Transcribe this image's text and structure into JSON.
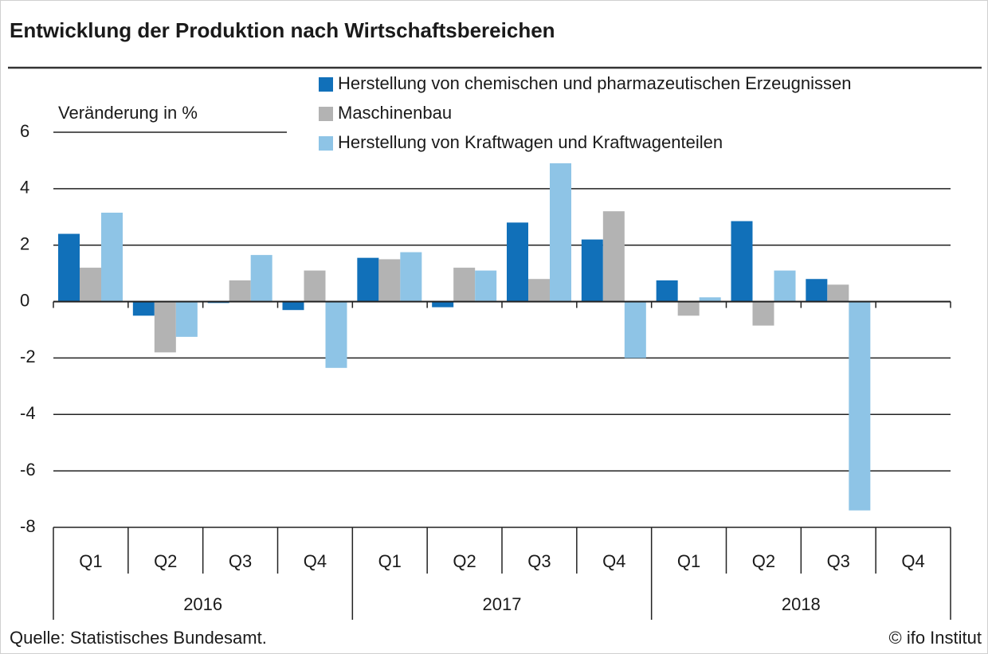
{
  "chart_data": {
    "type": "bar",
    "title": "Entwicklung der Produktion nach Wirtschaftsbereichen",
    "y_label": "Veränderung in %",
    "categories": [
      "Q1",
      "Q2",
      "Q3",
      "Q4",
      "Q1",
      "Q2",
      "Q3",
      "Q4",
      "Q1",
      "Q2",
      "Q3",
      "Q4"
    ],
    "years": [
      "2016",
      "2017",
      "2018"
    ],
    "series": [
      {
        "name": "Herstellung von chemischen und pharmazeutischen Erzeugnissen",
        "color": "#1170b9",
        "values": [
          2.4,
          -0.5,
          -0.05,
          -0.3,
          1.55,
          -0.2,
          2.8,
          2.2,
          0.75,
          2.85,
          0.8,
          null
        ]
      },
      {
        "name": "Maschinenbau",
        "color": "#b3b3b3",
        "values": [
          1.2,
          -1.8,
          0.75,
          1.1,
          1.5,
          1.2,
          0.8,
          3.2,
          -0.5,
          -0.85,
          0.6,
          null
        ]
      },
      {
        "name": "Herstellung von Kraftwagen und Kraftwagenteilen",
        "color": "#8ec4e6",
        "values": [
          3.15,
          -1.25,
          1.65,
          -2.35,
          1.75,
          1.1,
          4.9,
          -2.0,
          0.15,
          1.1,
          -7.4,
          null
        ]
      }
    ],
    "ylim": [
      -8,
      6
    ],
    "yticks": [
      -8,
      -6,
      -4,
      -2,
      0,
      2,
      4,
      6
    ],
    "grid": true,
    "source": "Quelle: Statistisches Bundesamt.",
    "credit": "© ifo Institut"
  }
}
